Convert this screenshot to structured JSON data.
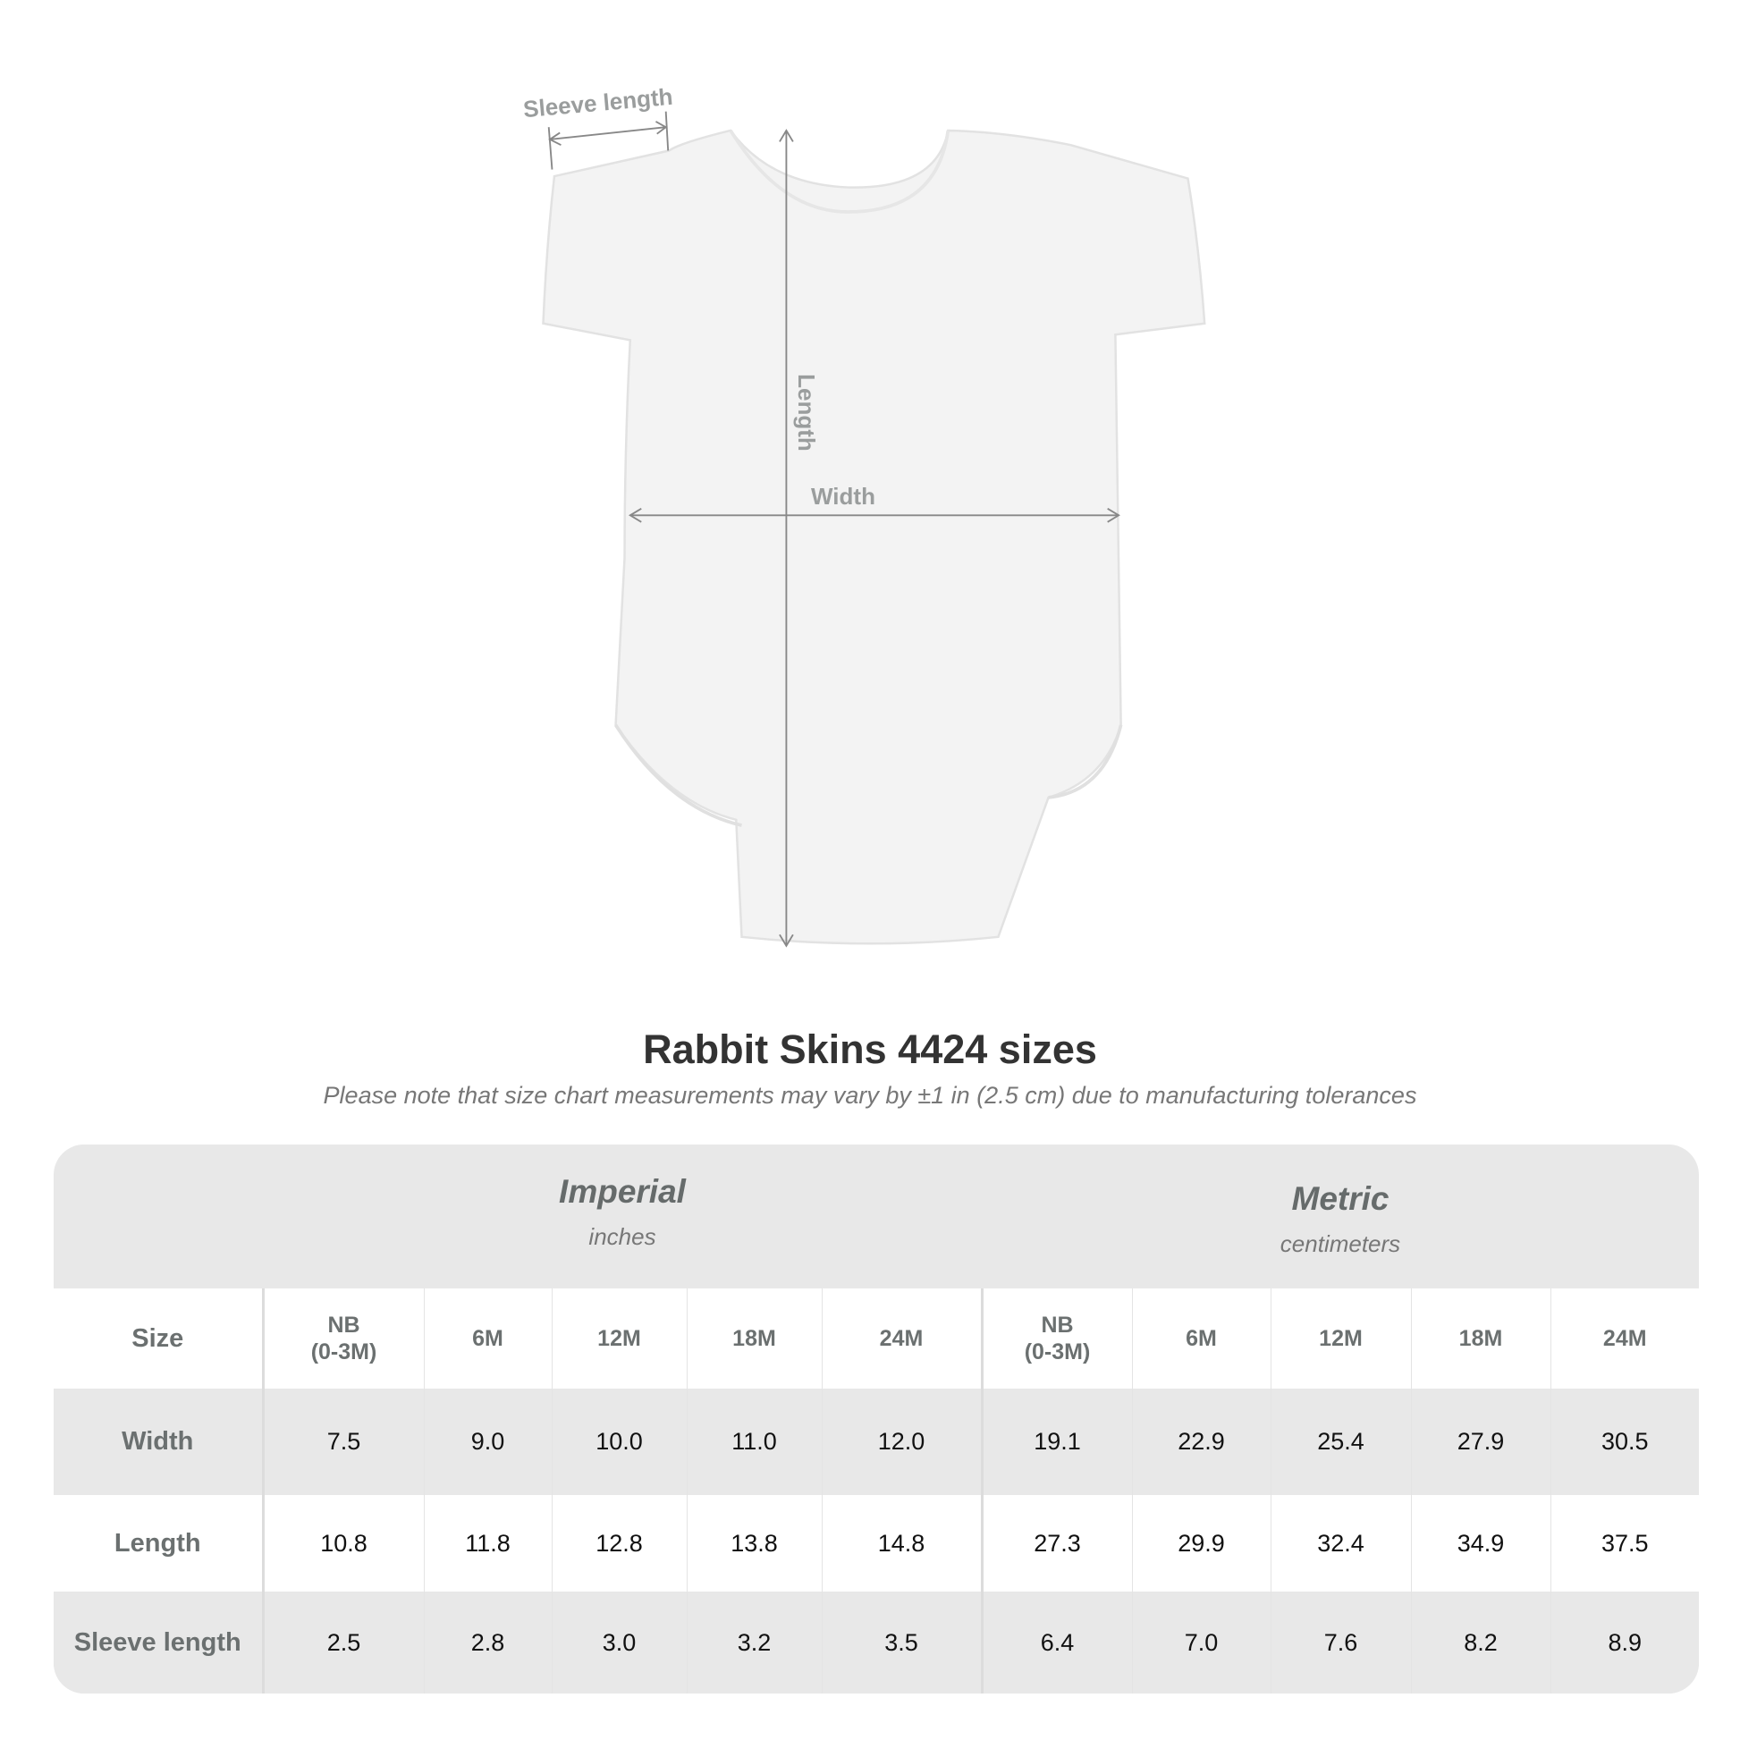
{
  "diagram": {
    "sleeve_label": "Sleeve length",
    "length_label": "Length",
    "width_label": "Width"
  },
  "title": "Rabbit Skins 4424 sizes",
  "subtitle": "Please note that size chart measurements may vary by ±1 in (2.5 cm) due to manufacturing tolerances",
  "table": {
    "imperial": {
      "name": "Imperial",
      "unit": "inches"
    },
    "metric": {
      "name": "Metric",
      "unit": "centimeters"
    },
    "size_label": "Size",
    "sizes": [
      "NB\n(0-3M)",
      "6M",
      "12M",
      "18M",
      "24M"
    ],
    "rows": [
      {
        "label": "Width",
        "imperial": [
          "7.5",
          "9.0",
          "10.0",
          "11.0",
          "12.0"
        ],
        "metric": [
          "19.1",
          "22.9",
          "25.4",
          "27.9",
          "30.5"
        ]
      },
      {
        "label": "Length",
        "imperial": [
          "10.8",
          "11.8",
          "12.8",
          "13.8",
          "14.8"
        ],
        "metric": [
          "27.3",
          "29.9",
          "32.4",
          "34.9",
          "37.5"
        ]
      },
      {
        "label": "Sleeve length",
        "imperial": [
          "2.5",
          "2.8",
          "3.0",
          "3.2",
          "3.5"
        ],
        "metric": [
          "6.4",
          "7.0",
          "7.6",
          "8.2",
          "8.9"
        ]
      }
    ]
  }
}
